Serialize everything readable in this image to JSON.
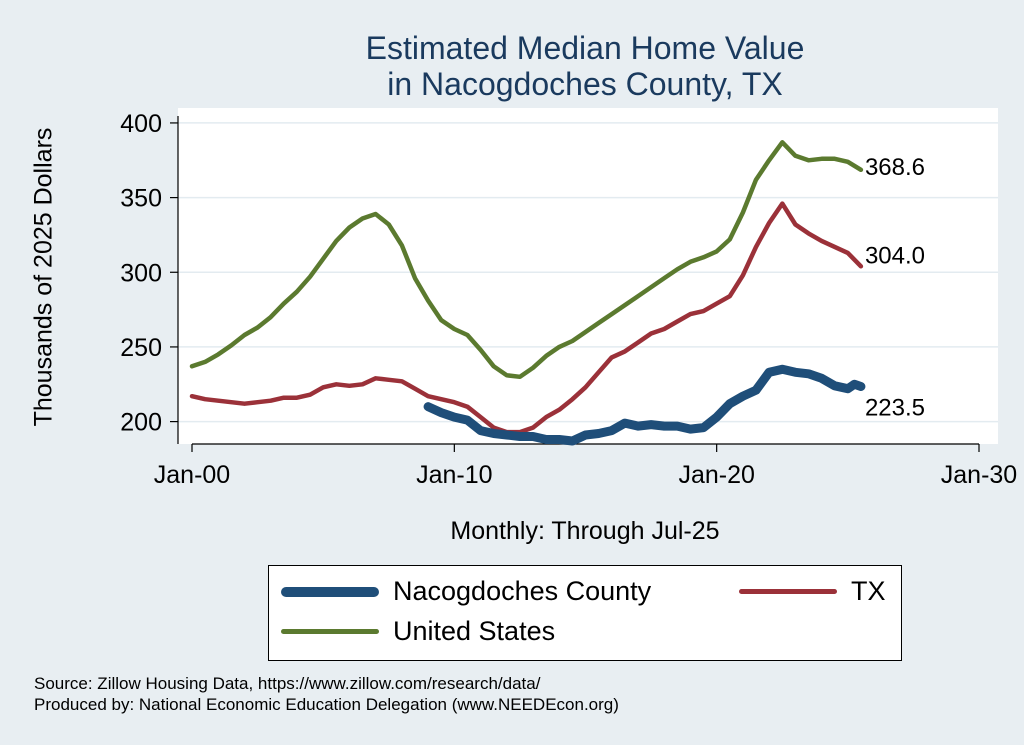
{
  "chart_data": {
    "type": "line",
    "title": [
      "Estimated Median Home Value",
      "in Nacogdoches County, TX"
    ],
    "xlabel": "Monthly: Through Jul-25",
    "ylabel": "Thousands of 2025 Dollars",
    "xlim": [
      2000,
      2030
    ],
    "ylim": [
      185,
      410
    ],
    "x_ticks": [
      {
        "value": 2000,
        "label": "Jan-00"
      },
      {
        "value": 2010,
        "label": "Jan-10"
      },
      {
        "value": 2020,
        "label": "Jan-20"
      },
      {
        "value": 2030,
        "label": "Jan-30"
      }
    ],
    "y_ticks": [
      {
        "value": 200,
        "label": "200"
      },
      {
        "value": 250,
        "label": "250"
      },
      {
        "value": 300,
        "label": "300"
      },
      {
        "value": 350,
        "label": "350"
      },
      {
        "value": 400,
        "label": "400"
      }
    ],
    "grid": true,
    "series": [
      {
        "name": "Nacogdoches County",
        "color": "#1f4e79",
        "end_label": "223.5",
        "points": [
          [
            2009.0,
            210
          ],
          [
            2009.5,
            206
          ],
          [
            2010.0,
            203
          ],
          [
            2010.5,
            201
          ],
          [
            2011.0,
            194
          ],
          [
            2011.5,
            192
          ],
          [
            2012.0,
            191
          ],
          [
            2012.5,
            190
          ],
          [
            2013.0,
            190
          ],
          [
            2013.5,
            188
          ],
          [
            2014.0,
            188
          ],
          [
            2014.5,
            187
          ],
          [
            2015.0,
            191
          ],
          [
            2015.5,
            192
          ],
          [
            2016.0,
            194
          ],
          [
            2016.5,
            199
          ],
          [
            2017.0,
            197
          ],
          [
            2017.5,
            198
          ],
          [
            2018.0,
            197
          ],
          [
            2018.5,
            197
          ],
          [
            2019.0,
            195
          ],
          [
            2019.5,
            196
          ],
          [
            2020.0,
            203
          ],
          [
            2020.5,
            212
          ],
          [
            2021.0,
            217
          ],
          [
            2021.5,
            221
          ],
          [
            2022.0,
            233
          ],
          [
            2022.5,
            235
          ],
          [
            2023.0,
            233
          ],
          [
            2023.5,
            232
          ],
          [
            2024.0,
            229
          ],
          [
            2024.5,
            224
          ],
          [
            2025.0,
            222
          ],
          [
            2025.25,
            225
          ],
          [
            2025.5,
            223.5
          ]
        ]
      },
      {
        "name": "TX",
        "color": "#9b3139",
        "end_label": "304.0",
        "points": [
          [
            2000.0,
            217
          ],
          [
            2000.5,
            215
          ],
          [
            2001.0,
            214
          ],
          [
            2001.5,
            213
          ],
          [
            2002.0,
            212
          ],
          [
            2002.5,
            213
          ],
          [
            2003.0,
            214
          ],
          [
            2003.5,
            216
          ],
          [
            2004.0,
            216
          ],
          [
            2004.5,
            218
          ],
          [
            2005.0,
            223
          ],
          [
            2005.5,
            225
          ],
          [
            2006.0,
            224
          ],
          [
            2006.5,
            225
          ],
          [
            2007.0,
            229
          ],
          [
            2007.5,
            228
          ],
          [
            2008.0,
            227
          ],
          [
            2008.5,
            222
          ],
          [
            2009.0,
            217
          ],
          [
            2009.5,
            215
          ],
          [
            2010.0,
            213
          ],
          [
            2010.5,
            210
          ],
          [
            2011.0,
            203
          ],
          [
            2011.5,
            196
          ],
          [
            2012.0,
            193
          ],
          [
            2012.5,
            193
          ],
          [
            2013.0,
            196
          ],
          [
            2013.5,
            203
          ],
          [
            2014.0,
            208
          ],
          [
            2014.5,
            215
          ],
          [
            2015.0,
            223
          ],
          [
            2015.5,
            233
          ],
          [
            2016.0,
            243
          ],
          [
            2016.5,
            247
          ],
          [
            2017.0,
            253
          ],
          [
            2017.5,
            259
          ],
          [
            2018.0,
            262
          ],
          [
            2018.5,
            267
          ],
          [
            2019.0,
            272
          ],
          [
            2019.5,
            274
          ],
          [
            2020.0,
            279
          ],
          [
            2020.5,
            284
          ],
          [
            2021.0,
            298
          ],
          [
            2021.5,
            317
          ],
          [
            2022.0,
            333
          ],
          [
            2022.5,
            346
          ],
          [
            2023.0,
            332
          ],
          [
            2023.5,
            326
          ],
          [
            2024.0,
            321
          ],
          [
            2024.5,
            317
          ],
          [
            2025.0,
            313
          ],
          [
            2025.5,
            304.0
          ]
        ]
      },
      {
        "name": "United States",
        "color": "#5b7a2f",
        "end_label": "368.6",
        "points": [
          [
            2000.0,
            237
          ],
          [
            2000.5,
            240
          ],
          [
            2001.0,
            245
          ],
          [
            2001.5,
            251
          ],
          [
            2002.0,
            258
          ],
          [
            2002.5,
            263
          ],
          [
            2003.0,
            270
          ],
          [
            2003.5,
            279
          ],
          [
            2004.0,
            287
          ],
          [
            2004.5,
            297
          ],
          [
            2005.0,
            309
          ],
          [
            2005.5,
            321
          ],
          [
            2006.0,
            330
          ],
          [
            2006.5,
            336
          ],
          [
            2007.0,
            339
          ],
          [
            2007.5,
            332
          ],
          [
            2008.0,
            318
          ],
          [
            2008.5,
            296
          ],
          [
            2009.0,
            281
          ],
          [
            2009.5,
            268
          ],
          [
            2010.0,
            262
          ],
          [
            2010.5,
            258
          ],
          [
            2011.0,
            248
          ],
          [
            2011.5,
            237
          ],
          [
            2012.0,
            231
          ],
          [
            2012.5,
            230
          ],
          [
            2013.0,
            236
          ],
          [
            2013.5,
            244
          ],
          [
            2014.0,
            250
          ],
          [
            2014.5,
            254
          ],
          [
            2015.0,
            260
          ],
          [
            2015.5,
            266
          ],
          [
            2016.0,
            272
          ],
          [
            2016.5,
            278
          ],
          [
            2017.0,
            284
          ],
          [
            2017.5,
            290
          ],
          [
            2018.0,
            296
          ],
          [
            2018.5,
            302
          ],
          [
            2019.0,
            307
          ],
          [
            2019.5,
            310
          ],
          [
            2020.0,
            314
          ],
          [
            2020.5,
            322
          ],
          [
            2021.0,
            340
          ],
          [
            2021.5,
            362
          ],
          [
            2022.0,
            375
          ],
          [
            2022.5,
            387
          ],
          [
            2023.0,
            378
          ],
          [
            2023.5,
            375
          ],
          [
            2024.0,
            376
          ],
          [
            2024.5,
            376
          ],
          [
            2025.0,
            374
          ],
          [
            2025.5,
            368.6
          ]
        ]
      }
    ],
    "legend": {
      "position": "bottom",
      "order": [
        "Nacogdoches County",
        "TX",
        "United States"
      ]
    }
  },
  "source_lines": [
    "Source: Zillow Housing Data, https://www.zillow.com/research/data/",
    "Produced by: National Economic Education Delegation (www.NEEDEcon.org)"
  ]
}
